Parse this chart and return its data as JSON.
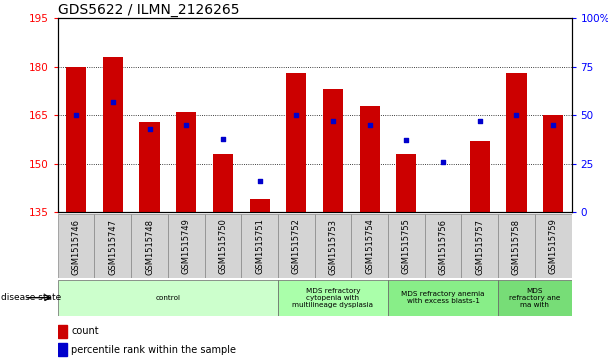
{
  "title": "GDS5622 / ILMN_2126265",
  "samples": [
    "GSM1515746",
    "GSM1515747",
    "GSM1515748",
    "GSM1515749",
    "GSM1515750",
    "GSM1515751",
    "GSM1515752",
    "GSM1515753",
    "GSM1515754",
    "GSM1515755",
    "GSM1515756",
    "GSM1515757",
    "GSM1515758",
    "GSM1515759"
  ],
  "counts": [
    180,
    183,
    163,
    166,
    153,
    139,
    178,
    173,
    168,
    153,
    135,
    157,
    178,
    165
  ],
  "percentile_ranks": [
    50,
    57,
    43,
    45,
    38,
    16,
    50,
    47,
    45,
    37,
    26,
    47,
    50,
    45
  ],
  "ylim_left": [
    135,
    195
  ],
  "ylim_right": [
    0,
    100
  ],
  "left_ticks": [
    135,
    150,
    165,
    180,
    195
  ],
  "right_ticks": [
    0,
    25,
    50,
    75,
    100
  ],
  "right_tick_labels": [
    "0",
    "25",
    "50",
    "75",
    "100%"
  ],
  "bar_color": "#cc0000",
  "dot_color": "#0000cc",
  "disease_groups": [
    {
      "label": "control",
      "start": 0,
      "end": 6,
      "color": "#ccffcc"
    },
    {
      "label": "MDS refractory\ncytopenia with\nmultilineage dysplasia",
      "start": 6,
      "end": 9,
      "color": "#aaffaa"
    },
    {
      "label": "MDS refractory anemia\nwith excess blasts-1",
      "start": 9,
      "end": 12,
      "color": "#88ee88"
    },
    {
      "label": "MDS\nrefractory ane\nma with",
      "start": 12,
      "end": 14,
      "color": "#77dd77"
    }
  ],
  "bar_width": 0.55,
  "disease_state_label": "disease state",
  "title_fontsize": 10,
  "tick_fontsize": 7.5,
  "label_fontsize": 6.0,
  "background_color": "#ffffff"
}
